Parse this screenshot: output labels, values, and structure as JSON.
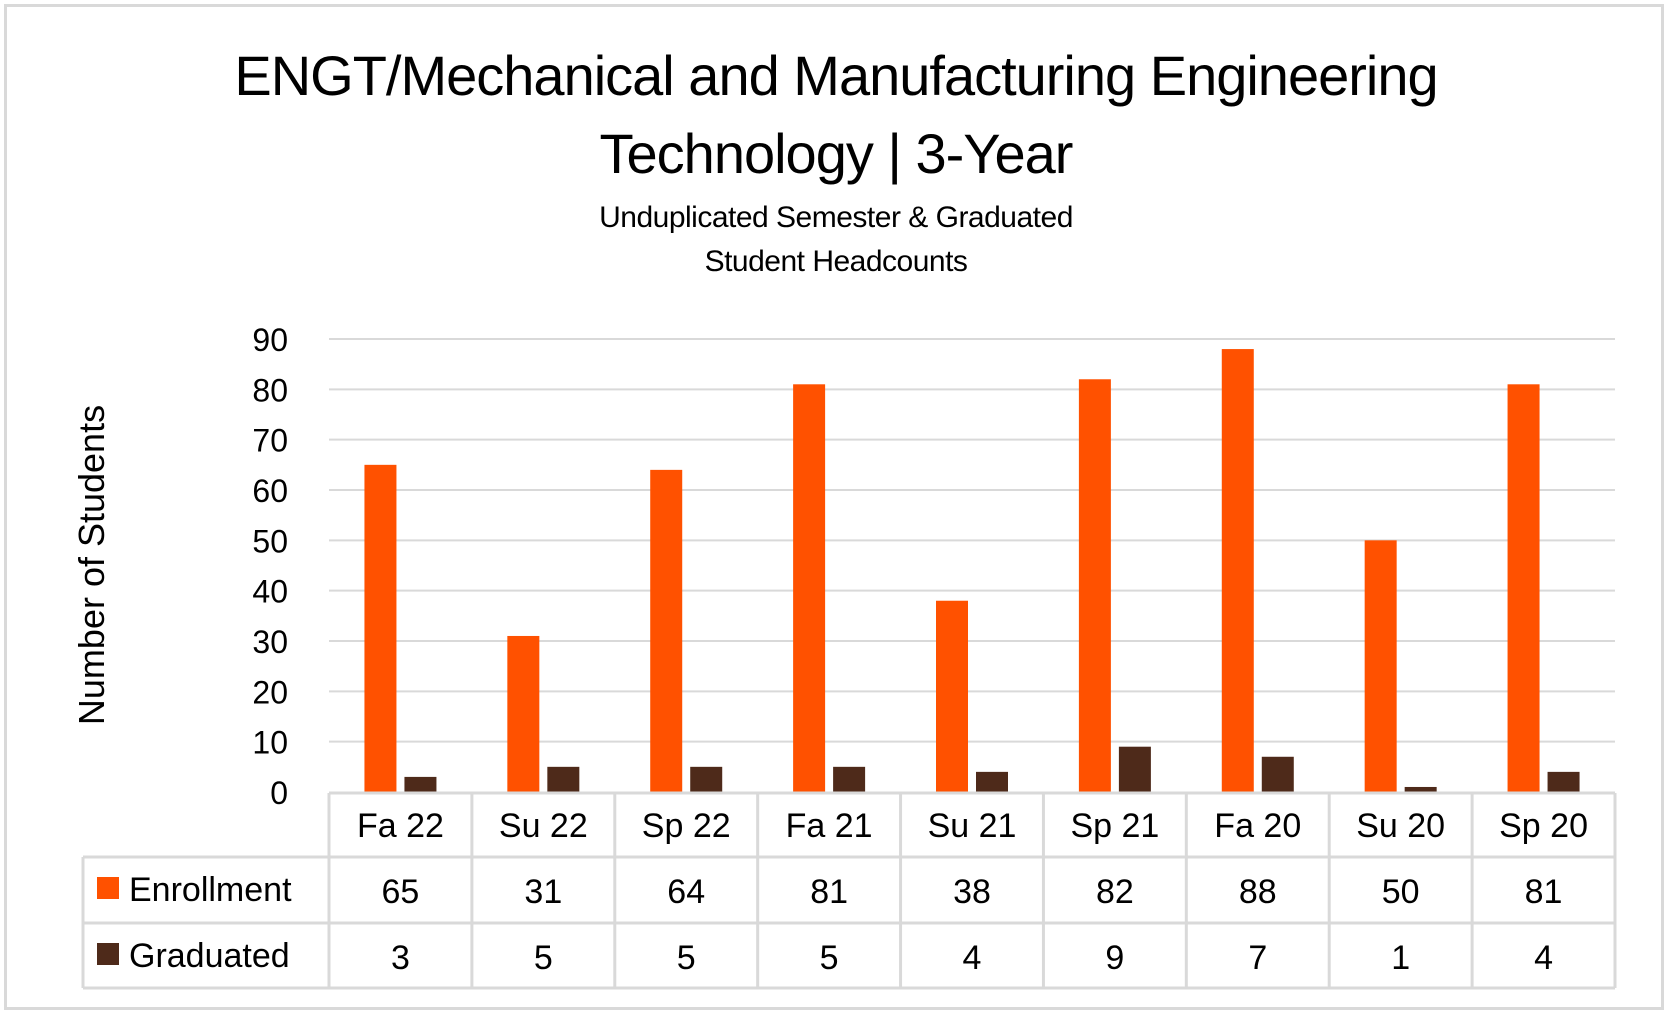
{
  "chart_data": {
    "type": "bar",
    "title": "ENGT/Mechanical and Manufacturing Engineering Technology | 3-Year",
    "title_lines": [
      "ENGT/Mechanical and Manufacturing Engineering",
      "Technology | 3-Year"
    ],
    "subtitle": "Unduplicated Semester & Graduated Student Headcounts",
    "subtitle_lines": [
      "Unduplicated Semester & Graduated",
      "Student Headcounts"
    ],
    "xlabel": "",
    "ylabel": "Number of Students",
    "ylim": [
      0,
      90
    ],
    "yticks": [
      0,
      10,
      20,
      30,
      40,
      50,
      60,
      70,
      80,
      90
    ],
    "grid": true,
    "legend": "data-table-left",
    "categories": [
      "Fa 22",
      "Su 22",
      "Sp 22",
      "Fa 21",
      "Su 21",
      "Sp 21",
      "Fa 20",
      "Su 20",
      "Sp 20"
    ],
    "series": [
      {
        "name": "Enrollment",
        "color": "#FF5100",
        "values": [
          65,
          31,
          64,
          81,
          38,
          82,
          88,
          50,
          81
        ]
      },
      {
        "name": "Graduated",
        "color": "#4E2A1A",
        "values": [
          3,
          5,
          5,
          5,
          4,
          9,
          7,
          1,
          4
        ]
      }
    ],
    "data_table": true
  }
}
